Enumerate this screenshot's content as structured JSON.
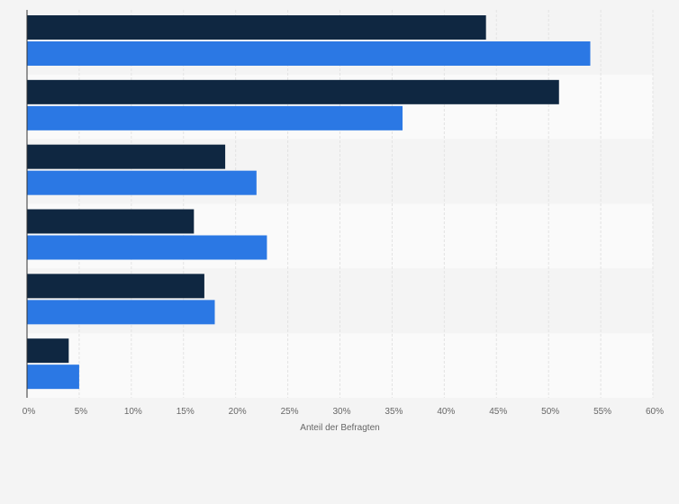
{
  "chart_data": {
    "type": "bar",
    "orientation": "horizontal",
    "title": "",
    "categories": [
      "",
      "",
      "",
      "",
      "",
      ""
    ],
    "series": [
      {
        "values": [
          44,
          51,
          19,
          16,
          17,
          4
        ],
        "color": "#0f2741"
      },
      {
        "values": [
          54,
          36,
          22,
          23,
          18,
          5
        ],
        "color": "#2b78e4"
      }
    ],
    "xlabel": "Anteil der Befragten",
    "ylabel": "",
    "xlim": [
      0,
      60
    ],
    "x_ticks": [
      0,
      5,
      10,
      15,
      20,
      25,
      30,
      35,
      40,
      45,
      50,
      55,
      60
    ],
    "x_tick_labels": [
      "0%",
      "5%",
      "10%",
      "15%",
      "20%",
      "25%",
      "30%",
      "35%",
      "40%",
      "45%",
      "50%",
      "55%",
      "60%"
    ],
    "grid": true,
    "legend": "none"
  },
  "colors": {
    "background": "#f4f4f4",
    "band_light": "#fafafa",
    "band_dark": "#f4f4f4",
    "gridline": "#e3e3e3",
    "axis": "#333333"
  }
}
